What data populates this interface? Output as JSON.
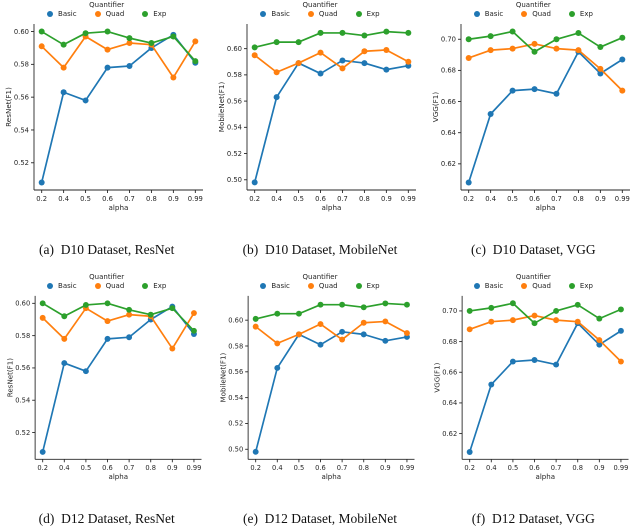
{
  "figure": {
    "legend": {
      "title": "Quantifier",
      "items": [
        {
          "label": "Basic",
          "color": "#1f77b4"
        },
        {
          "label": "Quad",
          "color": "#ff7f0e"
        },
        {
          "label": "Exp",
          "color": "#2ca02c"
        }
      ]
    },
    "axis_color": "#262626",
    "grid": false
  },
  "chart_data": [
    {
      "type": "line",
      "caption": "(a)  D10 Dataset, ResNet",
      "xlabel": "alpha",
      "ylabel": "ResNet(F1)",
      "categories": [
        "0.2",
        "0.4",
        "0.5",
        "0.6",
        "0.7",
        "0.8",
        "0.9",
        "0.99"
      ],
      "yticks": [
        0.52,
        0.54,
        0.56,
        0.58,
        0.6
      ],
      "ylim": [
        0.5034,
        0.6046
      ],
      "legend_position": "top",
      "series": [
        {
          "name": "Basic",
          "color": "#1f77b4",
          "values": [
            0.508,
            0.563,
            0.558,
            0.578,
            0.579,
            0.59,
            0.598,
            0.581
          ]
        },
        {
          "name": "Quad",
          "color": "#ff7f0e",
          "values": [
            0.591,
            0.578,
            0.597,
            0.589,
            0.593,
            0.592,
            0.572,
            0.594
          ]
        },
        {
          "name": "Exp",
          "color": "#2ca02c",
          "values": [
            0.6,
            0.592,
            0.599,
            0.6,
            0.596,
            0.593,
            0.597,
            0.582
          ]
        }
      ]
    },
    {
      "type": "line",
      "caption": "(b)  D10 Dataset, MobileNet",
      "xlabel": "alpha",
      "ylabel": "MobileNet(F1)",
      "categories": [
        "0.2",
        "0.4",
        "0.5",
        "0.6",
        "0.7",
        "0.8",
        "0.9",
        "0.99"
      ],
      "yticks": [
        0.5,
        0.52,
        0.54,
        0.56,
        0.58,
        0.6
      ],
      "ylim": [
        0.4922,
        0.6188
      ],
      "legend_position": "top",
      "series": [
        {
          "name": "Basic",
          "color": "#1f77b4",
          "values": [
            0.498,
            0.563,
            0.589,
            0.581,
            0.591,
            0.589,
            0.584,
            0.587
          ]
        },
        {
          "name": "Quad",
          "color": "#ff7f0e",
          "values": [
            0.595,
            0.582,
            0.589,
            0.597,
            0.585,
            0.598,
            0.599,
            0.59
          ]
        },
        {
          "name": "Exp",
          "color": "#2ca02c",
          "values": [
            0.601,
            0.605,
            0.605,
            0.612,
            0.612,
            0.61,
            0.613,
            0.612
          ]
        }
      ]
    },
    {
      "type": "line",
      "caption": "(c)  D10 Dataset, VGG",
      "xlabel": "alpha",
      "ylabel": "VGG(F1)",
      "categories": [
        "0.2",
        "0.4",
        "0.5",
        "0.6",
        "0.7",
        "0.8",
        "0.9",
        "0.99"
      ],
      "yticks": [
        0.62,
        0.64,
        0.66,
        0.68,
        0.7
      ],
      "ylim": [
        0.6032,
        0.7098
      ],
      "legend_position": "top",
      "series": [
        {
          "name": "Basic",
          "color": "#1f77b4",
          "values": [
            0.608,
            0.652,
            0.667,
            0.668,
            0.665,
            0.692,
            0.678,
            0.687
          ]
        },
        {
          "name": "Quad",
          "color": "#ff7f0e",
          "values": [
            0.688,
            0.693,
            0.694,
            0.697,
            0.694,
            0.693,
            0.681,
            0.667
          ]
        },
        {
          "name": "Exp",
          "color": "#2ca02c",
          "values": [
            0.7,
            0.702,
            0.705,
            0.692,
            0.7,
            0.704,
            0.695,
            0.701
          ]
        }
      ]
    },
    {
      "type": "line",
      "caption": "(d)  D12 Dataset, ResNet",
      "xlabel": "alpha",
      "ylabel": "ResNet(F1)",
      "categories": [
        "0.2",
        "0.4",
        "0.5",
        "0.6",
        "0.7",
        "0.8",
        "0.9",
        "0.99"
      ],
      "yticks": [
        0.52,
        0.54,
        0.56,
        0.58,
        0.6
      ],
      "ylim": [
        0.5034,
        0.6046
      ],
      "legend_position": "top",
      "series": [
        {
          "name": "Basic",
          "color": "#1f77b4",
          "values": [
            0.508,
            0.563,
            0.558,
            0.578,
            0.579,
            0.59,
            0.598,
            0.581
          ]
        },
        {
          "name": "Quad",
          "color": "#ff7f0e",
          "values": [
            0.591,
            0.578,
            0.597,
            0.589,
            0.593,
            0.592,
            0.572,
            0.594
          ]
        },
        {
          "name": "Exp",
          "color": "#2ca02c",
          "values": [
            0.6,
            0.592,
            0.599,
            0.6,
            0.596,
            0.593,
            0.597,
            0.583
          ]
        }
      ]
    },
    {
      "type": "line",
      "caption": "(e)  D12 Dataset, MobileNet",
      "xlabel": "alpha",
      "ylabel": "MobileNet(F1)",
      "categories": [
        "0.2",
        "0.4",
        "0.5",
        "0.6",
        "0.7",
        "0.8",
        "0.9",
        "0.99"
      ],
      "yticks": [
        0.5,
        0.52,
        0.54,
        0.56,
        0.58,
        0.6
      ],
      "ylim": [
        0.4922,
        0.6188
      ],
      "legend_position": "top",
      "series": [
        {
          "name": "Basic",
          "color": "#1f77b4",
          "values": [
            0.498,
            0.563,
            0.589,
            0.581,
            0.591,
            0.589,
            0.584,
            0.587
          ]
        },
        {
          "name": "Quad",
          "color": "#ff7f0e",
          "values": [
            0.595,
            0.582,
            0.589,
            0.597,
            0.585,
            0.598,
            0.599,
            0.59
          ]
        },
        {
          "name": "Exp",
          "color": "#2ca02c",
          "values": [
            0.601,
            0.605,
            0.605,
            0.612,
            0.612,
            0.61,
            0.613,
            0.612
          ]
        }
      ]
    },
    {
      "type": "line",
      "caption": "(f)  D12 Dataset, VGG",
      "xlabel": "alpha",
      "ylabel": "VGG(F1)",
      "categories": [
        "0.2",
        "0.4",
        "0.5",
        "0.6",
        "0.7",
        "0.8",
        "0.9",
        "0.99"
      ],
      "yticks": [
        0.62,
        0.64,
        0.66,
        0.68,
        0.7
      ],
      "ylim": [
        0.6032,
        0.7098
      ],
      "legend_position": "top",
      "series": [
        {
          "name": "Basic",
          "color": "#1f77b4",
          "values": [
            0.608,
            0.652,
            0.667,
            0.668,
            0.665,
            0.692,
            0.678,
            0.687
          ]
        },
        {
          "name": "Quad",
          "color": "#ff7f0e",
          "values": [
            0.688,
            0.693,
            0.694,
            0.697,
            0.694,
            0.693,
            0.681,
            0.667
          ]
        },
        {
          "name": "Exp",
          "color": "#2ca02c",
          "values": [
            0.7,
            0.702,
            0.705,
            0.692,
            0.7,
            0.704,
            0.695,
            0.701
          ]
        }
      ]
    }
  ]
}
